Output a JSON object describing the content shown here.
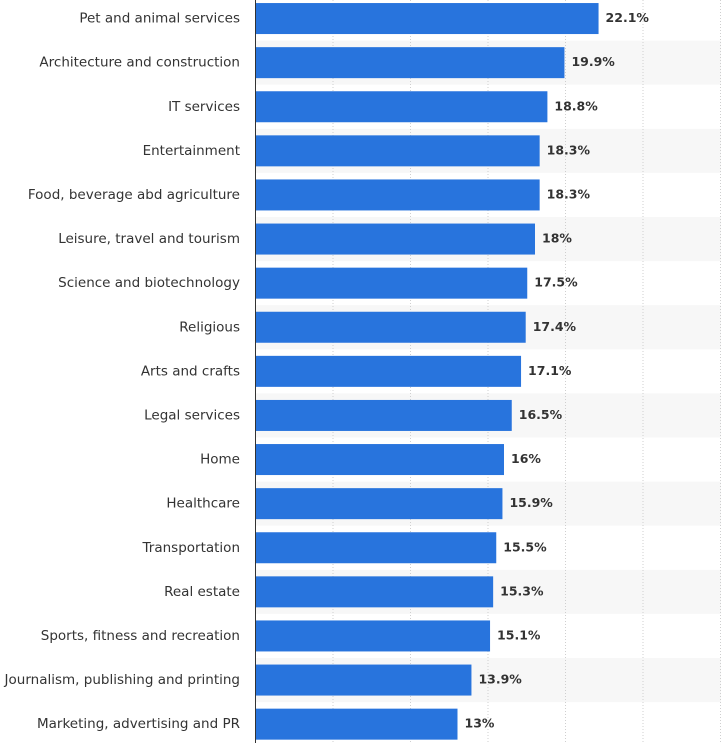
{
  "chart_data": {
    "type": "bar",
    "orientation": "horizontal",
    "categories": [
      "Pet and animal services",
      "Architecture and construction",
      "IT services",
      "Entertainment",
      "Food, beverage abd agriculture",
      "Leisure, travel and tourism",
      "Science and biotechnology",
      "Religious",
      "Arts and crafts",
      "Legal services",
      "Home",
      "Healthcare",
      "Transportation",
      "Real estate",
      "Sports, fitness and recreation",
      "Journalism, publishing and printing",
      "Marketing, advertising and PR"
    ],
    "values": [
      22.1,
      19.9,
      18.8,
      18.3,
      18.3,
      18,
      17.5,
      17.4,
      17.1,
      16.5,
      16,
      15.9,
      15.5,
      15.3,
      15.1,
      13.9,
      13
    ],
    "value_labels": [
      "22.1%",
      "19.9%",
      "18.8%",
      "18.3%",
      "18.3%",
      "18%",
      "17.5%",
      "17.4%",
      "17.1%",
      "16.5%",
      "16%",
      "15.9%",
      "15.5%",
      "15.3%",
      "15.1%",
      "13.9%",
      "13%"
    ],
    "xlim": [
      0,
      30
    ],
    "x_gridlines": [
      0,
      5,
      10,
      15,
      20,
      25,
      30
    ],
    "grid": true,
    "legend": "none",
    "bar_color": "#2874dd",
    "stripe_color": "#f7f7f7",
    "gridline_color": "#cfcfcf",
    "axis_color": "#333333"
  }
}
